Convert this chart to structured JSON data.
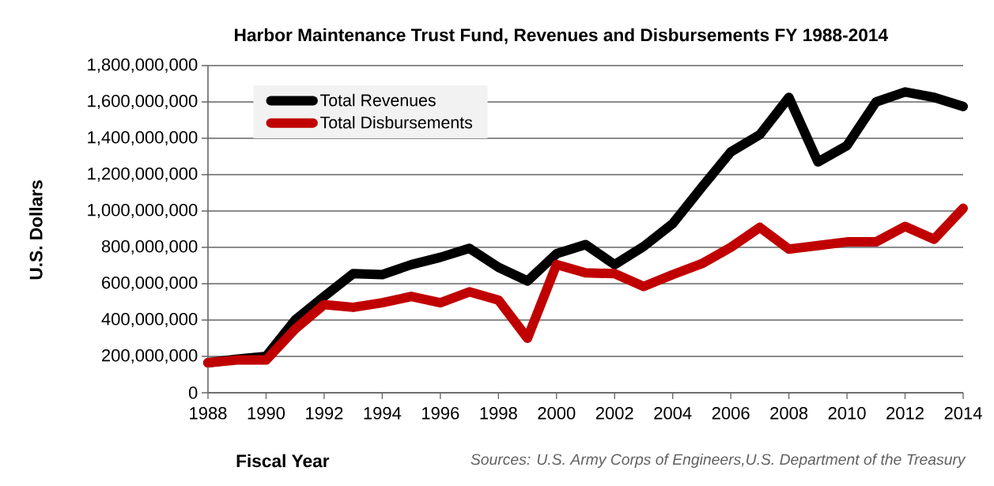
{
  "chart_data": {
    "type": "line",
    "title": "Harbor Maintenance Trust Fund, Revenues and Disbursements FY 1988-2014",
    "xlabel": "Fiscal Year",
    "ylabel": "U.S. Dollars",
    "annotations": [
      "Sources: U.S. Army Corps of Engineers,U.S. Department of the Treasury"
    ],
    "x": [
      1988,
      1989,
      1990,
      1991,
      1992,
      1993,
      1994,
      1995,
      1996,
      1997,
      1998,
      1999,
      2000,
      2001,
      2002,
      2003,
      2004,
      2005,
      2006,
      2007,
      2008,
      2009,
      2010,
      2011,
      2012,
      2013,
      2014
    ],
    "series": [
      {
        "name": "Total Revenues",
        "color": "#000000",
        "values": [
          165000000,
          185000000,
          200000000,
          400000000,
          530000000,
          655000000,
          650000000,
          705000000,
          745000000,
          795000000,
          690000000,
          615000000,
          765000000,
          815000000,
          705000000,
          805000000,
          930000000,
          1130000000,
          1325000000,
          1420000000,
          1625000000,
          1270000000,
          1360000000,
          1600000000,
          1655000000,
          1625000000,
          1575000000
        ]
      },
      {
        "name": "Total Disbursements",
        "color": "#c00000",
        "values": [
          165000000,
          180000000,
          180000000,
          350000000,
          485000000,
          470000000,
          495000000,
          530000000,
          495000000,
          555000000,
          510000000,
          300000000,
          705000000,
          660000000,
          655000000,
          585000000,
          650000000,
          710000000,
          800000000,
          910000000,
          790000000,
          810000000,
          830000000,
          830000000,
          915000000,
          845000000,
          1015000000
        ]
      }
    ],
    "xlim": [
      1988,
      2014
    ],
    "xticks": [
      1988,
      1990,
      1992,
      1994,
      1996,
      1998,
      2000,
      2002,
      2004,
      2006,
      2008,
      2010,
      2012,
      2014
    ],
    "ylim": [
      0,
      1800000000
    ],
    "yticks": [
      {
        "value": 0,
        "label": "0"
      },
      {
        "value": 200000000,
        "label": "200,000,000"
      },
      {
        "value": 400000000,
        "label": "400,000,000"
      },
      {
        "value": 600000000,
        "label": "600,000,000"
      },
      {
        "value": 800000000,
        "label": "800,000,000"
      },
      {
        "value": 1000000000,
        "label": "1,000,000,000"
      },
      {
        "value": 1200000000,
        "label": "1,200,000,000"
      },
      {
        "value": 1400000000,
        "label": "1,400,000,000"
      },
      {
        "value": 1600000000,
        "label": "1,600,000,000"
      },
      {
        "value": 1800000000,
        "label": "1,800,000,000"
      }
    ],
    "grid": "y",
    "legend": "top left",
    "marker": "none",
    "line_style": "solid"
  }
}
